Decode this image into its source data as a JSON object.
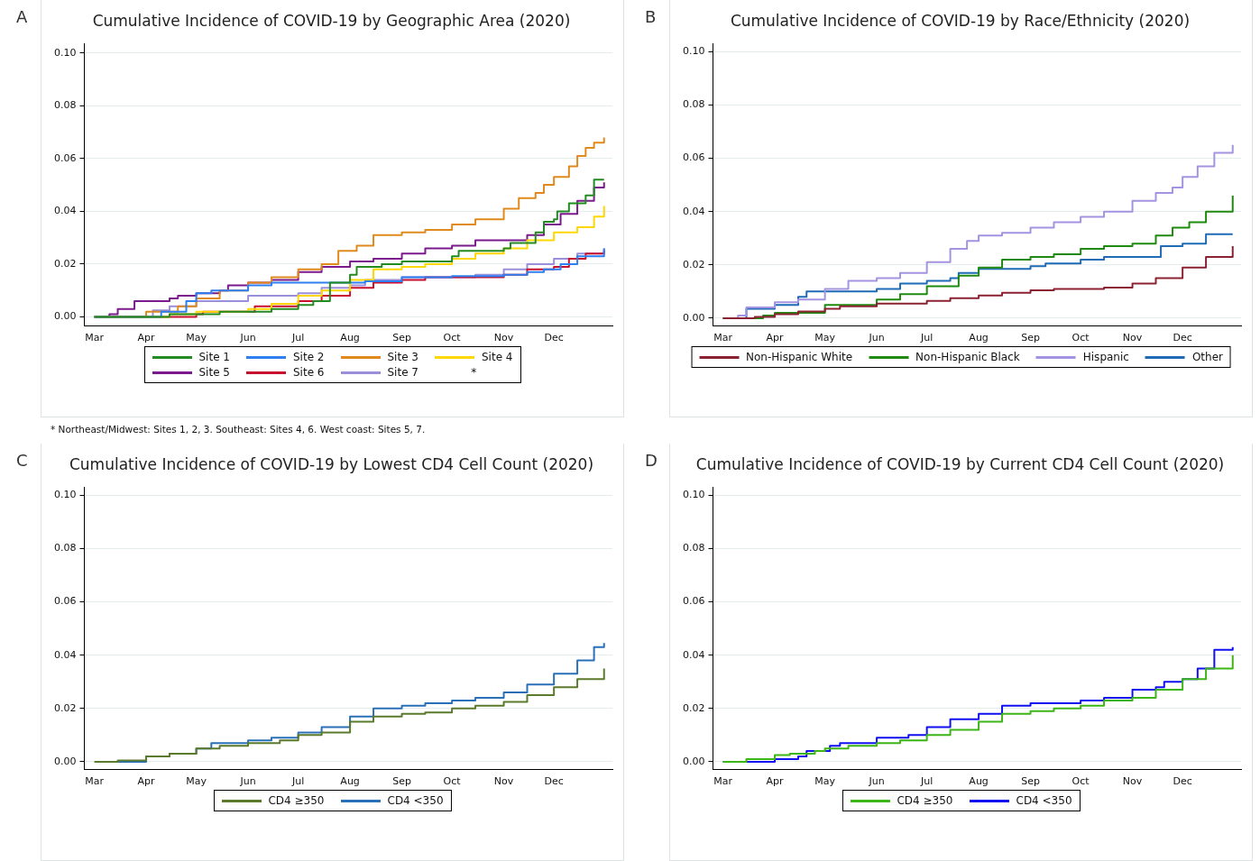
{
  "chart_data": [
    {
      "type": "step",
      "title": "Cumulative Incidence of COVID-19 by Geographic Area (2020)",
      "annotations": [
        "A",
        "*",
        "* Northeast/Midwest: Sites 1, 2, 3.  Southeast: Sites 4, 6.  West coast: Sites 5, 7."
      ],
      "legend": "bottom",
      "grid": "y",
      "xlim": [
        "2020-02-24",
        "2021-01-05"
      ],
      "xticks": [
        {
          "value": "2020-03-01",
          "label": "Mar"
        },
        {
          "value": "2020-04-01",
          "label": "Apr"
        },
        {
          "value": "2020-05-01",
          "label": "May"
        },
        {
          "value": "2020-06-01",
          "label": "Jun"
        },
        {
          "value": "2020-07-01",
          "label": "Jul"
        },
        {
          "value": "2020-08-01",
          "label": "Aug"
        },
        {
          "value": "2020-09-01",
          "label": "Sep"
        },
        {
          "value": "2020-10-01",
          "label": "Oct"
        },
        {
          "value": "2020-11-01",
          "label": "Nov"
        },
        {
          "value": "2020-12-01",
          "label": "Dec"
        }
      ],
      "ylim": [
        -0.0035,
        0.1035
      ],
      "yticks": [
        {
          "value": 0,
          "label": "0.00"
        },
        {
          "value": 0.02,
          "label": "0.02"
        },
        {
          "value": 0.04,
          "label": "0.04"
        },
        {
          "value": 0.06,
          "label": "0.06"
        },
        {
          "value": 0.08,
          "label": "0.08"
        },
        {
          "value": 0.1,
          "label": "0.10"
        }
      ],
      "series": [
        {
          "name": "Site 1",
          "color": "#238b21",
          "x": [
            "2020-03-01",
            "2020-04-15",
            "2020-05-15",
            "2020-06-15",
            "2020-07-01",
            "2020-07-10",
            "2020-07-20",
            "2020-08-01",
            "2020-08-05",
            "2020-08-20",
            "2020-09-01",
            "2020-10-01",
            "2020-10-05",
            "2020-11-01",
            "2020-11-05",
            "2020-11-20",
            "2020-11-25",
            "2020-12-01",
            "2020-12-03",
            "2020-12-10",
            "2020-12-20",
            "2020-12-25",
            "2020-12-31"
          ],
          "values": [
            0,
            0.001,
            0.002,
            0.003,
            0.0045,
            0.006,
            0.013,
            0.016,
            0.019,
            0.02,
            0.021,
            0.023,
            0.025,
            0.026,
            0.028,
            0.032,
            0.036,
            0.037,
            0.04,
            0.043,
            0.046,
            0.052,
            0.052
          ]
        },
        {
          "name": "Site 2",
          "color": "#2e7ff0",
          "x": [
            "2020-03-01",
            "2020-04-10",
            "2020-04-25",
            "2020-05-01",
            "2020-05-10",
            "2020-06-01",
            "2020-06-15",
            "2020-08-01",
            "2020-08-10",
            "2020-09-01",
            "2020-10-01",
            "2020-11-01",
            "2020-11-15",
            "2020-11-25",
            "2020-12-05",
            "2020-12-15",
            "2020-12-31"
          ],
          "values": [
            0,
            0.002,
            0.006,
            0.009,
            0.01,
            0.012,
            0.013,
            0.013,
            0.0135,
            0.015,
            0.0155,
            0.016,
            0.017,
            0.018,
            0.02,
            0.023,
            0.026
          ]
        },
        {
          "name": "Site 3",
          "color": "#e08a1e",
          "x": [
            "2020-03-05",
            "2020-04-01",
            "2020-04-20",
            "2020-05-01",
            "2020-05-15",
            "2020-06-01",
            "2020-06-15",
            "2020-07-01",
            "2020-07-15",
            "2020-07-25",
            "2020-08-05",
            "2020-08-15",
            "2020-09-01",
            "2020-09-15",
            "2020-10-01",
            "2020-10-15",
            "2020-11-01",
            "2020-11-10",
            "2020-11-20",
            "2020-11-25",
            "2020-12-01",
            "2020-12-10",
            "2020-12-15",
            "2020-12-20",
            "2020-12-25",
            "2020-12-31"
          ],
          "values": [
            0,
            0.002,
            0.004,
            0.007,
            0.01,
            0.013,
            0.015,
            0.018,
            0.02,
            0.025,
            0.027,
            0.031,
            0.032,
            0.033,
            0.035,
            0.037,
            0.041,
            0.045,
            0.047,
            0.05,
            0.053,
            0.057,
            0.061,
            0.064,
            0.066,
            0.068
          ]
        },
        {
          "name": "Site 4",
          "color": "#ffd700",
          "x": [
            "2020-03-01",
            "2020-04-15",
            "2020-05-01",
            "2020-06-01",
            "2020-06-15",
            "2020-07-01",
            "2020-07-15",
            "2020-08-01",
            "2020-08-15",
            "2020-09-01",
            "2020-09-15",
            "2020-10-01",
            "2020-10-15",
            "2020-11-01",
            "2020-11-15",
            "2020-12-01",
            "2020-12-15",
            "2020-12-25",
            "2020-12-31"
          ],
          "values": [
            0,
            0.001,
            0.002,
            0.003,
            0.005,
            0.008,
            0.01,
            0.014,
            0.018,
            0.019,
            0.02,
            0.022,
            0.024,
            0.026,
            0.029,
            0.032,
            0.034,
            0.038,
            0.042
          ]
        },
        {
          "name": "Site 5",
          "color": "#7b1a8c",
          "x": [
            "2020-03-01",
            "2020-03-10",
            "2020-03-15",
            "2020-03-25",
            "2020-04-15",
            "2020-04-20",
            "2020-05-01",
            "2020-05-15",
            "2020-05-20",
            "2020-06-01",
            "2020-06-15",
            "2020-07-01",
            "2020-07-15",
            "2020-08-01",
            "2020-08-15",
            "2020-09-01",
            "2020-09-15",
            "2020-10-01",
            "2020-10-15",
            "2020-11-01",
            "2020-11-15",
            "2020-11-25",
            "2020-12-05",
            "2020-12-15",
            "2020-12-25",
            "2020-12-31"
          ],
          "values": [
            0,
            0.001,
            0.003,
            0.006,
            0.007,
            0.008,
            0.009,
            0.01,
            0.012,
            0.013,
            0.014,
            0.017,
            0.019,
            0.021,
            0.022,
            0.024,
            0.026,
            0.027,
            0.029,
            0.029,
            0.031,
            0.035,
            0.039,
            0.044,
            0.049,
            0.051
          ]
        },
        {
          "name": "Site 6",
          "color": "#c8102e",
          "x": [
            "2020-03-01",
            "2020-05-01",
            "2020-05-05",
            "2020-06-05",
            "2020-07-01",
            "2020-07-15",
            "2020-08-01",
            "2020-08-15",
            "2020-09-01",
            "2020-09-15",
            "2020-10-15",
            "2020-11-01",
            "2020-11-15",
            "2020-12-01",
            "2020-12-10",
            "2020-12-20",
            "2020-12-31"
          ],
          "values": [
            0,
            0.001,
            0.002,
            0.004,
            0.006,
            0.008,
            0.011,
            0.013,
            0.014,
            0.015,
            0.015,
            0.016,
            0.018,
            0.019,
            0.022,
            0.024,
            0.025
          ]
        },
        {
          "name": "Site 7",
          "color": "#9b8fdc",
          "x": [
            "2020-03-01",
            "2020-04-05",
            "2020-04-15",
            "2020-05-01",
            "2020-06-01",
            "2020-07-01",
            "2020-07-15",
            "2020-08-01",
            "2020-08-10",
            "2020-09-01",
            "2020-10-15",
            "2020-11-01",
            "2020-11-15",
            "2020-12-01",
            "2020-12-15",
            "2020-12-31"
          ],
          "values": [
            0,
            0.0025,
            0.004,
            0.006,
            0.008,
            0.009,
            0.011,
            0.012,
            0.014,
            0.015,
            0.016,
            0.018,
            0.02,
            0.022,
            0.024,
            0.026
          ]
        }
      ]
    },
    {
      "type": "step",
      "title": "Cumulative Incidence of COVID-19 by Race/Ethnicity (2020)",
      "annotations": [
        "B"
      ],
      "legend": "bottom",
      "grid": "y",
      "xlim": [
        "2020-02-24",
        "2021-01-05"
      ],
      "xticks": [
        {
          "value": "2020-03-01",
          "label": "Mar"
        },
        {
          "value": "2020-04-01",
          "label": "Apr"
        },
        {
          "value": "2020-05-01",
          "label": "May"
        },
        {
          "value": "2020-06-01",
          "label": "Jun"
        },
        {
          "value": "2020-07-01",
          "label": "Jul"
        },
        {
          "value": "2020-08-01",
          "label": "Aug"
        },
        {
          "value": "2020-09-01",
          "label": "Sep"
        },
        {
          "value": "2020-10-01",
          "label": "Oct"
        },
        {
          "value": "2020-11-01",
          "label": "Nov"
        },
        {
          "value": "2020-12-01",
          "label": "Dec"
        }
      ],
      "ylim": [
        -0.003,
        0.103
      ],
      "yticks": [
        {
          "value": 0,
          "label": "0.00"
        },
        {
          "value": 0.02,
          "label": "0.02"
        },
        {
          "value": 0.04,
          "label": "0.04"
        },
        {
          "value": 0.06,
          "label": "0.06"
        },
        {
          "value": 0.08,
          "label": "0.08"
        },
        {
          "value": 0.1,
          "label": "0.10"
        }
      ],
      "series": [
        {
          "name": "Non-Hispanic White",
          "color": "#8b2232",
          "x": [
            "2020-03-01",
            "2020-03-20",
            "2020-04-01",
            "2020-04-15",
            "2020-05-01",
            "2020-05-10",
            "2020-06-01",
            "2020-07-01",
            "2020-07-15",
            "2020-08-01",
            "2020-08-15",
            "2020-09-01",
            "2020-09-15",
            "2020-10-15",
            "2020-11-01",
            "2020-11-15",
            "2020-12-01",
            "2020-12-15",
            "2020-12-31"
          ],
          "values": [
            0,
            0.0005,
            0.0015,
            0.0025,
            0.0035,
            0.0045,
            0.0055,
            0.0065,
            0.0075,
            0.0085,
            0.0095,
            0.0105,
            0.011,
            0.0115,
            0.013,
            0.015,
            0.019,
            0.023,
            0.027
          ]
        },
        {
          "name": "Non-Hispanic Black",
          "color": "#1f8a10",
          "x": [
            "2020-03-01",
            "2020-03-25",
            "2020-04-01",
            "2020-05-01",
            "2020-06-01",
            "2020-06-15",
            "2020-07-01",
            "2020-07-20",
            "2020-08-01",
            "2020-08-15",
            "2020-09-01",
            "2020-09-15",
            "2020-10-01",
            "2020-10-15",
            "2020-11-01",
            "2020-11-15",
            "2020-11-25",
            "2020-12-05",
            "2020-12-15",
            "2020-12-31"
          ],
          "values": [
            0,
            0.001,
            0.002,
            0.005,
            0.007,
            0.009,
            0.012,
            0.016,
            0.019,
            0.022,
            0.023,
            0.024,
            0.026,
            0.027,
            0.028,
            0.031,
            0.034,
            0.036,
            0.04,
            0.046
          ]
        },
        {
          "name": "Hispanic",
          "color": "#a393e0",
          "x": [
            "2020-03-01",
            "2020-03-10",
            "2020-03-15",
            "2020-04-01",
            "2020-04-15",
            "2020-05-01",
            "2020-05-15",
            "2020-06-01",
            "2020-06-15",
            "2020-07-01",
            "2020-07-15",
            "2020-07-25",
            "2020-08-01",
            "2020-08-15",
            "2020-09-01",
            "2020-09-15",
            "2020-10-01",
            "2020-10-15",
            "2020-11-01",
            "2020-11-15",
            "2020-11-25",
            "2020-12-01",
            "2020-12-10",
            "2020-12-20",
            "2020-12-31"
          ],
          "values": [
            0,
            0.001,
            0.004,
            0.006,
            0.007,
            0.011,
            0.014,
            0.015,
            0.017,
            0.021,
            0.026,
            0.029,
            0.031,
            0.032,
            0.034,
            0.036,
            0.038,
            0.04,
            0.044,
            0.047,
            0.049,
            0.053,
            0.057,
            0.062,
            0.065
          ]
        },
        {
          "name": "Other",
          "color": "#1f6bb5",
          "x": [
            "2020-03-01",
            "2020-03-15",
            "2020-04-01",
            "2020-04-15",
            "2020-04-20",
            "2020-05-15",
            "2020-06-01",
            "2020-06-15",
            "2020-07-01",
            "2020-07-15",
            "2020-07-20",
            "2020-08-01",
            "2020-09-01",
            "2020-09-10",
            "2020-10-01",
            "2020-10-15",
            "2020-11-15",
            "2020-11-18",
            "2020-12-01",
            "2020-12-15",
            "2020-12-31"
          ],
          "values": [
            0,
            0.0035,
            0.005,
            0.008,
            0.01,
            0.01,
            0.011,
            0.013,
            0.014,
            0.015,
            0.017,
            0.0185,
            0.0195,
            0.0205,
            0.022,
            0.023,
            0.023,
            0.027,
            0.028,
            0.0315,
            0.0315
          ]
        }
      ]
    },
    {
      "type": "step",
      "title": "Cumulative Incidence of COVID-19 by Lowest CD4 Cell Count (2020)",
      "annotations": [
        "C"
      ],
      "legend": "bottom",
      "grid": "y",
      "xlim": [
        "2020-02-24",
        "2021-01-05"
      ],
      "xticks": [
        {
          "value": "2020-03-01",
          "label": "Mar"
        },
        {
          "value": "2020-04-01",
          "label": "Apr"
        },
        {
          "value": "2020-05-01",
          "label": "May"
        },
        {
          "value": "2020-06-01",
          "label": "Jun"
        },
        {
          "value": "2020-07-01",
          "label": "Jul"
        },
        {
          "value": "2020-08-01",
          "label": "Aug"
        },
        {
          "value": "2020-09-01",
          "label": "Sep"
        },
        {
          "value": "2020-10-01",
          "label": "Oct"
        },
        {
          "value": "2020-11-01",
          "label": "Nov"
        },
        {
          "value": "2020-12-01",
          "label": "Dec"
        }
      ],
      "ylim": [
        -0.003,
        0.103
      ],
      "yticks": [
        {
          "value": 0,
          "label": "0.00"
        },
        {
          "value": 0.02,
          "label": "0.02"
        },
        {
          "value": 0.04,
          "label": "0.04"
        },
        {
          "value": 0.06,
          "label": "0.06"
        },
        {
          "value": 0.08,
          "label": "0.08"
        },
        {
          "value": 0.1,
          "label": "0.10"
        }
      ],
      "series": [
        {
          "name": "CD4 ≥350",
          "color": "#5b7a2b",
          "x": [
            "2020-03-01",
            "2020-03-15",
            "2020-04-01",
            "2020-04-15",
            "2020-05-01",
            "2020-05-15",
            "2020-06-01",
            "2020-06-20",
            "2020-07-01",
            "2020-07-15",
            "2020-08-01",
            "2020-08-15",
            "2020-09-01",
            "2020-09-15",
            "2020-10-01",
            "2020-10-15",
            "2020-11-01",
            "2020-11-15",
            "2020-12-01",
            "2020-12-15",
            "2020-12-31"
          ],
          "values": [
            0,
            0.0005,
            0.002,
            0.003,
            0.005,
            0.006,
            0.007,
            0.008,
            0.01,
            0.011,
            0.015,
            0.017,
            0.018,
            0.0185,
            0.02,
            0.021,
            0.0225,
            0.025,
            0.028,
            0.031,
            0.035
          ]
        },
        {
          "name": "CD4 <350",
          "color": "#2a70b8",
          "x": [
            "2020-03-05",
            "2020-04-01",
            "2020-04-15",
            "2020-05-01",
            "2020-05-10",
            "2020-06-01",
            "2020-06-15",
            "2020-07-01",
            "2020-07-15",
            "2020-08-01",
            "2020-08-15",
            "2020-09-01",
            "2020-09-15",
            "2020-10-01",
            "2020-10-15",
            "2020-11-01",
            "2020-11-15",
            "2020-12-01",
            "2020-12-15",
            "2020-12-25",
            "2020-12-31"
          ],
          "values": [
            0,
            0.002,
            0.003,
            0.005,
            0.007,
            0.008,
            0.009,
            0.011,
            0.013,
            0.017,
            0.02,
            0.021,
            0.022,
            0.023,
            0.024,
            0.026,
            0.029,
            0.033,
            0.038,
            0.043,
            0.0445
          ]
        }
      ]
    },
    {
      "type": "step",
      "title": "Cumulative Incidence of COVID-19 by Current CD4 Cell Count (2020)",
      "annotations": [
        "D"
      ],
      "legend": "bottom",
      "grid": "y",
      "xlim": [
        "2020-02-24",
        "2021-01-05"
      ],
      "xticks": [
        {
          "value": "2020-03-01",
          "label": "Mar"
        },
        {
          "value": "2020-04-01",
          "label": "Apr"
        },
        {
          "value": "2020-05-01",
          "label": "May"
        },
        {
          "value": "2020-06-01",
          "label": "Jun"
        },
        {
          "value": "2020-07-01",
          "label": "Jul"
        },
        {
          "value": "2020-08-01",
          "label": "Aug"
        },
        {
          "value": "2020-09-01",
          "label": "Sep"
        },
        {
          "value": "2020-10-01",
          "label": "Oct"
        },
        {
          "value": "2020-11-01",
          "label": "Nov"
        },
        {
          "value": "2020-12-01",
          "label": "Dec"
        }
      ],
      "ylim": [
        -0.003,
        0.103
      ],
      "yticks": [
        {
          "value": 0,
          "label": "0.00"
        },
        {
          "value": 0.02,
          "label": "0.02"
        },
        {
          "value": 0.04,
          "label": "0.04"
        },
        {
          "value": 0.06,
          "label": "0.06"
        },
        {
          "value": 0.08,
          "label": "0.08"
        },
        {
          "value": 0.1,
          "label": "0.10"
        }
      ],
      "series": [
        {
          "name": "CD4 ≥350",
          "color": "#3cb516",
          "x": [
            "2020-03-01",
            "2020-03-15",
            "2020-04-01",
            "2020-04-10",
            "2020-04-25",
            "2020-05-01",
            "2020-05-15",
            "2020-06-01",
            "2020-06-15",
            "2020-07-01",
            "2020-07-15",
            "2020-08-01",
            "2020-08-15",
            "2020-09-01",
            "2020-09-15",
            "2020-10-01",
            "2020-10-15",
            "2020-11-01",
            "2020-11-15",
            "2020-12-01",
            "2020-12-15",
            "2020-12-31"
          ],
          "values": [
            0,
            0.001,
            0.0025,
            0.003,
            0.004,
            0.005,
            0.006,
            0.007,
            0.008,
            0.01,
            0.012,
            0.015,
            0.018,
            0.019,
            0.02,
            0.021,
            0.023,
            0.024,
            0.027,
            0.031,
            0.035,
            0.04
          ]
        },
        {
          "name": "CD4 <350",
          "color": "#1010f0",
          "x": [
            "2020-03-01",
            "2020-04-01",
            "2020-04-15",
            "2020-04-20",
            "2020-05-04",
            "2020-05-10",
            "2020-06-01",
            "2020-06-20",
            "2020-07-01",
            "2020-07-15",
            "2020-08-01",
            "2020-08-15",
            "2020-09-01",
            "2020-10-01",
            "2020-10-15",
            "2020-11-01",
            "2020-11-15",
            "2020-11-20",
            "2020-12-01",
            "2020-12-10",
            "2020-12-20",
            "2020-12-31"
          ],
          "values": [
            0,
            0.001,
            0.002,
            0.004,
            0.006,
            0.007,
            0.009,
            0.01,
            0.013,
            0.016,
            0.018,
            0.021,
            0.022,
            0.023,
            0.024,
            0.027,
            0.028,
            0.03,
            0.031,
            0.035,
            0.042,
            0.043
          ]
        }
      ]
    }
  ]
}
